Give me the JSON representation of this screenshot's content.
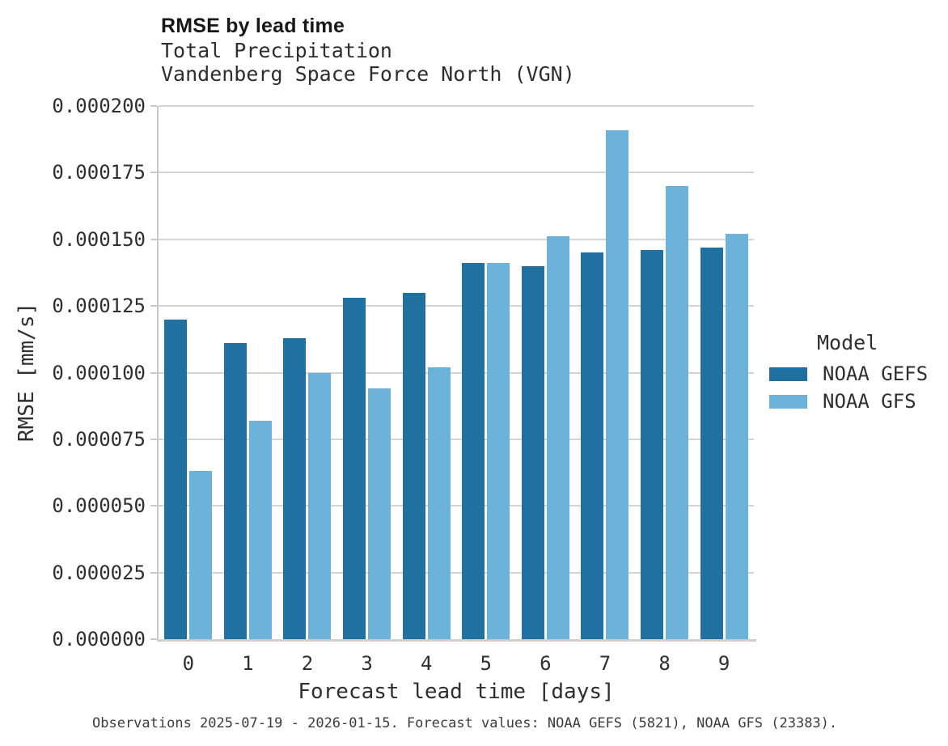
{
  "header": {
    "title": "RMSE by lead time",
    "subtitle1": "Total Precipitation",
    "subtitle2": "Vandenberg Space Force North (VGN)"
  },
  "legend": {
    "title": "Model",
    "entries": [
      {
        "label": "NOAA GEFS",
        "color": "#20719f"
      },
      {
        "label": "NOAA GFS",
        "color": "#6cb2d9"
      }
    ]
  },
  "footer": {
    "text": "Observations 2025-07-19 - 2026-01-15. Forecast values: NOAA GEFS (5821), NOAA GFS (23383)."
  },
  "colors": {
    "gefs_bar": "#20719f",
    "gfs_bar": "#6cb2d9",
    "gridline": "#d4d4d4",
    "spine": "#c9c9c9"
  },
  "chart_data": {
    "type": "bar",
    "title": "RMSE by lead time",
    "subtitle": "Total Precipitation",
    "subtitle2": "Vandenberg Space Force North (VGN)",
    "xlabel": "Forecast lead time [days]",
    "ylabel": "RMSE [mm/s]",
    "categories": [
      "0",
      "1",
      "2",
      "3",
      "4",
      "5",
      "6",
      "7",
      "8",
      "9"
    ],
    "series": [
      {
        "name": "NOAA GEFS",
        "color": "#20719f",
        "values": [
          0.00012,
          0.000111,
          0.000113,
          0.000128,
          0.00013,
          0.000141,
          0.00014,
          0.000145,
          0.000146,
          0.000147
        ]
      },
      {
        "name": "NOAA GFS",
        "color": "#6cb2d9",
        "values": [
          6.3e-05,
          8.2e-05,
          0.0001,
          9.4e-05,
          0.000102,
          0.000141,
          0.000151,
          0.000191,
          0.00017,
          0.000152
        ]
      }
    ],
    "ylim": [
      0,
      0.0002
    ],
    "yticks": [
      {
        "value": 0.0,
        "label": "0.000000"
      },
      {
        "value": 2.5e-05,
        "label": "0.000025"
      },
      {
        "value": 5e-05,
        "label": "0.000050"
      },
      {
        "value": 7.5e-05,
        "label": "0.000075"
      },
      {
        "value": 0.0001,
        "label": "0.000100"
      },
      {
        "value": 0.000125,
        "label": "0.000125"
      },
      {
        "value": 0.00015,
        "label": "0.000150"
      },
      {
        "value": 0.000175,
        "label": "0.000175"
      },
      {
        "value": 0.0002,
        "label": "0.000200"
      }
    ],
    "grid": "horizontal",
    "legend_position": "right",
    "legend_title": "Model"
  }
}
